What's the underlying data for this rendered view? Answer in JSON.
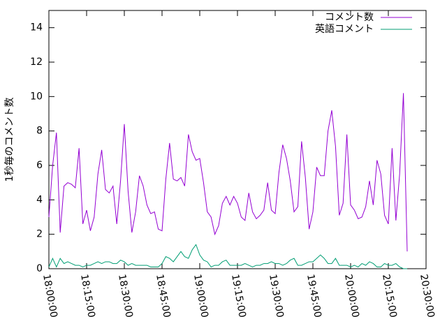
{
  "chart_data": {
    "type": "line",
    "y_label": "1秒毎のコメント数",
    "x": [
      "18:00:00",
      "18:01:30",
      "18:03:00",
      "18:04:30",
      "18:06:00",
      "18:07:30",
      "18:09:00",
      "18:10:30",
      "18:12:00",
      "18:13:30",
      "18:15:00",
      "18:16:30",
      "18:18:00",
      "18:19:30",
      "18:21:00",
      "18:22:30",
      "18:24:00",
      "18:25:30",
      "18:27:00",
      "18:28:30",
      "18:30:00",
      "18:31:30",
      "18:33:00",
      "18:34:30",
      "18:36:00",
      "18:37:30",
      "18:39:00",
      "18:40:30",
      "18:42:00",
      "18:43:30",
      "18:45:00",
      "18:46:30",
      "18:48:00",
      "18:49:30",
      "18:51:00",
      "18:52:30",
      "18:54:00",
      "18:55:30",
      "18:57:00",
      "18:58:30",
      "19:00:00",
      "19:01:30",
      "19:03:00",
      "19:04:30",
      "19:06:00",
      "19:07:30",
      "19:09:00",
      "19:10:30",
      "19:12:00",
      "19:13:30",
      "19:15:00",
      "19:16:30",
      "19:18:00",
      "19:19:30",
      "19:21:00",
      "19:22:30",
      "19:24:00",
      "19:25:30",
      "19:27:00",
      "19:28:30",
      "19:30:00",
      "19:31:30",
      "19:33:00",
      "19:34:30",
      "19:36:00",
      "19:37:30",
      "19:39:00",
      "19:40:30",
      "19:42:00",
      "19:43:30",
      "19:45:00",
      "19:46:30",
      "19:48:00",
      "19:49:30",
      "19:51:00",
      "19:52:30",
      "19:54:00",
      "19:55:30",
      "19:57:00",
      "19:58:30",
      "20:00:00",
      "20:01:30",
      "20:03:00",
      "20:04:30",
      "20:06:00",
      "20:07:30",
      "20:09:00",
      "20:10:30",
      "20:12:00",
      "20:13:30",
      "20:15:00",
      "20:16:30",
      "20:18:00",
      "20:19:30",
      "20:21:00",
      "20:22:30"
    ],
    "series": [
      {
        "name": "コメント数",
        "color": "#9400d3",
        "values": [
          3.0,
          6.0,
          7.9,
          2.1,
          4.8,
          5.0,
          4.9,
          4.7,
          7.0,
          2.6,
          3.4,
          2.2,
          3.0,
          5.5,
          6.9,
          4.6,
          4.4,
          4.8,
          2.6,
          5.1,
          8.4,
          4.5,
          2.1,
          3.3,
          5.4,
          4.8,
          3.7,
          3.2,
          3.3,
          2.3,
          2.2,
          5.2,
          7.3,
          5.2,
          5.1,
          5.3,
          4.8,
          7.8,
          6.8,
          6.3,
          6.4,
          5.0,
          3.3,
          3.0,
          2.0,
          2.5,
          3.8,
          4.2,
          3.7,
          4.2,
          3.8,
          3.0,
          2.8,
          4.4,
          3.3,
          2.9,
          3.1,
          3.4,
          5.0,
          3.4,
          3.2,
          5.6,
          7.2,
          6.4,
          5.1,
          3.3,
          3.6,
          7.4,
          5.3,
          2.3,
          3.3,
          5.9,
          5.4,
          5.4,
          8.0,
          9.2,
          7.1,
          3.1,
          3.8,
          7.8,
          3.7,
          3.4,
          2.9,
          3.0,
          3.6,
          5.1,
          3.7,
          6.3,
          5.5,
          3.1,
          2.6,
          7.0,
          2.8,
          5.5,
          10.2,
          1.0
        ]
      },
      {
        "name": "英語コメント",
        "color": "#009e73",
        "values": [
          0.1,
          0.6,
          0.1,
          0.6,
          0.3,
          0.4,
          0.3,
          0.2,
          0.2,
          0.1,
          0.2,
          0.2,
          0.3,
          0.4,
          0.3,
          0.4,
          0.4,
          0.3,
          0.3,
          0.5,
          0.4,
          0.2,
          0.3,
          0.2,
          0.2,
          0.2,
          0.2,
          0.1,
          0.1,
          0.1,
          0.3,
          0.7,
          0.6,
          0.4,
          0.7,
          1.0,
          0.7,
          0.6,
          1.1,
          1.4,
          0.8,
          0.5,
          0.4,
          0.1,
          0.2,
          0.2,
          0.4,
          0.5,
          0.2,
          0.2,
          0.2,
          0.2,
          0.3,
          0.2,
          0.1,
          0.2,
          0.2,
          0.3,
          0.3,
          0.4,
          0.3,
          0.3,
          0.2,
          0.3,
          0.5,
          0.6,
          0.2,
          0.2,
          0.3,
          0.4,
          0.4,
          0.6,
          0.8,
          0.6,
          0.3,
          0.3,
          0.6,
          0.2,
          0.2,
          0.2,
          0.1,
          0.2,
          0.1,
          0.3,
          0.2,
          0.4,
          0.3,
          0.1,
          0.1,
          0.3,
          0.2,
          0.2,
          0.3,
          0.1,
          0.0,
          0.0
        ]
      }
    ],
    "xlim": [
      "18:00:00",
      "20:30:00"
    ],
    "xticks": [
      "18:00:00",
      "18:15:00",
      "18:30:00",
      "18:45:00",
      "19:00:00",
      "19:15:00",
      "19:30:00",
      "19:45:00",
      "20:00:00",
      "20:15:00",
      "20:30:00"
    ],
    "ylim": [
      0,
      15
    ],
    "yticks": [
      0,
      2,
      4,
      6,
      8,
      10,
      12,
      14
    ],
    "legend": "top right"
  }
}
